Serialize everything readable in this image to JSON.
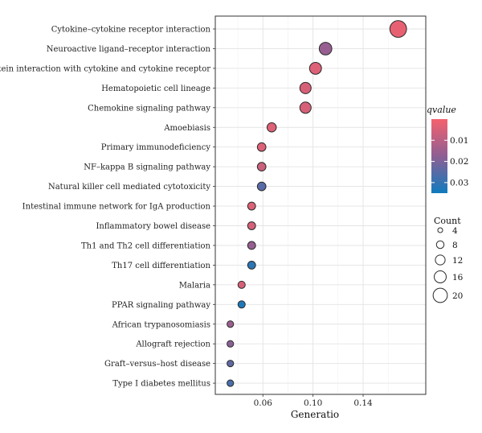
{
  "chart_data": {
    "type": "scatter",
    "xlabel": "Generatio",
    "xlim": [
      0.022,
      0.19
    ],
    "xticks": [
      0.06,
      0.1,
      0.14
    ],
    "xtick_labels": [
      "0.06",
      "0.10",
      "0.14"
    ],
    "grid": true,
    "categories": [
      "Cytokine–cytokine receptor interaction",
      "Neuroactive ligand–receptor interaction",
      "Viral protein interaction with cytokine and cytokine receptor",
      "Hematopoietic cell lineage",
      "Chemokine signaling pathway",
      "Amoebiasis",
      "Primary immunodeficiency",
      "NF–kappa B signaling pathway",
      "Natural killer cell mediated cytotoxicity",
      "Intestinal immune network for IgA production",
      "Inflammatory bowel disease",
      "Th1 and Th2 cell differentiation",
      "Th17 cell differentiation",
      "Malaria",
      "PPAR signaling pathway",
      "African trypanosomiasis",
      "Allograft rejection",
      "Graft–versus–host disease",
      "Type I diabetes mellitus"
    ],
    "points": [
      {
        "gene_ratio": 0.168,
        "count": 19,
        "qvalue": 0.002
      },
      {
        "gene_ratio": 0.11,
        "count": 13,
        "qvalue": 0.016
      },
      {
        "gene_ratio": 0.102,
        "count": 12,
        "qvalue": 0.004
      },
      {
        "gene_ratio": 0.094,
        "count": 11,
        "qvalue": 0.005
      },
      {
        "gene_ratio": 0.094,
        "count": 11,
        "qvalue": 0.005
      },
      {
        "gene_ratio": 0.067,
        "count": 8,
        "qvalue": 0.004
      },
      {
        "gene_ratio": 0.059,
        "count": 7,
        "qvalue": 0.004
      },
      {
        "gene_ratio": 0.059,
        "count": 7,
        "qvalue": 0.007
      },
      {
        "gene_ratio": 0.059,
        "count": 7,
        "qvalue": 0.025
      },
      {
        "gene_ratio": 0.051,
        "count": 6,
        "qvalue": 0.004
      },
      {
        "gene_ratio": 0.051,
        "count": 6,
        "qvalue": 0.005
      },
      {
        "gene_ratio": 0.051,
        "count": 6,
        "qvalue": 0.016
      },
      {
        "gene_ratio": 0.051,
        "count": 6,
        "qvalue": 0.031
      },
      {
        "gene_ratio": 0.043,
        "count": 5,
        "qvalue": 0.005
      },
      {
        "gene_ratio": 0.043,
        "count": 5,
        "qvalue": 0.033
      },
      {
        "gene_ratio": 0.034,
        "count": 4,
        "qvalue": 0.015
      },
      {
        "gene_ratio": 0.034,
        "count": 4,
        "qvalue": 0.018
      },
      {
        "gene_ratio": 0.034,
        "count": 4,
        "qvalue": 0.024
      },
      {
        "gene_ratio": 0.034,
        "count": 4,
        "qvalue": 0.027
      }
    ],
    "color_legend": {
      "title": "qvalue",
      "range": [
        0.0,
        0.035
      ],
      "ticks": [
        0.01,
        0.02,
        0.03
      ],
      "tick_labels": [
        "0.01",
        "0.02",
        "0.03"
      ],
      "low_color": "#f4616e",
      "mid_color": "#8e5f94",
      "high_color": "#0f7bbd"
    },
    "size_legend": {
      "title": "Count",
      "values": [
        4,
        8,
        12,
        16,
        20
      ],
      "labels": [
        "4",
        "8",
        "12",
        "16",
        "20"
      ]
    }
  }
}
